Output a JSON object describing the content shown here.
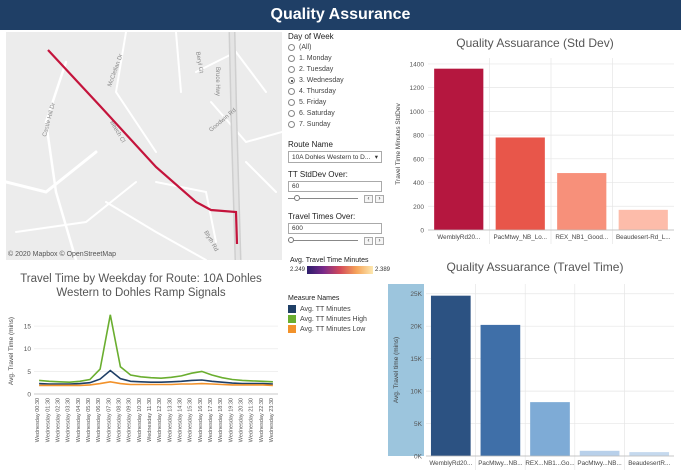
{
  "title": "Quality Assurance",
  "map": {
    "credit": "© 2020 Mapbox  © OpenStreetMap",
    "street_labels": [
      "McClellan Dr",
      "Beryl Gt",
      "Beech Cl",
      "Castle Hill Dr",
      "Goodwin Rd",
      "Blyth Rd",
      "Bruce Hwy",
      "Castle Hill Dr"
    ]
  },
  "filters": {
    "day_label": "Day of Week",
    "days": [
      {
        "label": "(All)",
        "selected": false
      },
      {
        "label": "1. Monday",
        "selected": false
      },
      {
        "label": "2. Tuesday",
        "selected": false
      },
      {
        "label": "3. Wednesday",
        "selected": true
      },
      {
        "label": "4. Thursday",
        "selected": false
      },
      {
        "label": "5. Friday",
        "selected": false
      },
      {
        "label": "6. Saturday",
        "selected": false
      },
      {
        "label": "7. Sunday",
        "selected": false
      }
    ],
    "route_label": "Route Name",
    "route_value": "10A Dohles Western to D...",
    "stddev_label": "TT StdDev Over:",
    "stddev_value": "60",
    "tt_label": "Travel Times Over:",
    "tt_value": "600",
    "color_legend_title": "Avg. Travel Time Minutes",
    "color_min": "2.249",
    "color_max": "2.389",
    "measure_title": "Measure Names",
    "measures": [
      {
        "label": "Avg. TT Minutes",
        "color": "#1f3f66"
      },
      {
        "label": "Avg. TT Minutes High",
        "color": "#6aae2f"
      },
      {
        "label": "Avg. TT Minutes Low",
        "color": "#f2922b"
      }
    ]
  },
  "std_chart": {
    "title": "Quality Assuarance (Std Dev)",
    "ylabel": "Travel Time Minutes StdDev",
    "y_ticks": [
      "0",
      "200",
      "400",
      "600",
      "800",
      "1000",
      "1200",
      "1400"
    ]
  },
  "tt_chart": {
    "title": "Quality Assuarance (Travel Time)",
    "ylabel": "Avg. Travel time (mins)",
    "y_ticks": [
      "0K",
      "5K",
      "10K",
      "15K",
      "20K",
      "25K"
    ]
  },
  "weekday_chart": {
    "title": "Travel Time by Weekday for Route: 10A Dohles Western to Dohles Ramp Signals",
    "ylabel": "Avg. Travel Time (mins)",
    "y_ticks": [
      "0",
      "5",
      "10",
      "15"
    ]
  },
  "chart_data": [
    {
      "type": "bar",
      "title": "Quality Assuarance (Std Dev)",
      "ylabel": "Travel Time Minutes StdDev",
      "ylim": [
        0,
        1450
      ],
      "categories": [
        "WemblyRd20...",
        "PacMtwy_NB_Lo...",
        "REX_NB1_Good...",
        "Beaudesert-Rd_L..."
      ],
      "values": [
        1360,
        780,
        480,
        170
      ],
      "colors": [
        "#b5173f",
        "#e8564a",
        "#f7907a",
        "#fdbcaa"
      ]
    },
    {
      "type": "bar",
      "title": "Quality Assuarance (Travel Time)",
      "ylabel": "Avg. Travel time (mins)",
      "ylim": [
        0,
        26500
      ],
      "categories": [
        "WemblyRd20...",
        "PacMtwy...NB...",
        "REX...NB1...Go...",
        "PacMtwy...NB...",
        "BeaudesertR..."
      ],
      "values": [
        24700,
        20200,
        8300,
        800,
        600
      ],
      "colors": [
        "#2c5282",
        "#3f6fa8",
        "#7eabd6",
        "#b8d0ea",
        "#c5d9ee"
      ]
    },
    {
      "type": "line",
      "title": "Travel Time by Weekday for Route: 10A Dohles Western to Dohles Ramp Signals",
      "ylabel": "Avg. Travel Time (mins)",
      "ylim": [
        0,
        19
      ],
      "x": [
        "Wednesday 00:30",
        "Wednesday 01:30",
        "Wednesday 02:30",
        "Wednesday 03:30",
        "Wednesday 04:30",
        "Wednesday 05:30",
        "Wednesday 06:30",
        "Wednesday 07:30",
        "Wednesday 08:30",
        "Wednesday 09:30",
        "Wednesday 10:30",
        "Wednesday 11:30",
        "Wednesday 12:30",
        "Wednesday 13:30",
        "Wednesday 14:30",
        "Wednesday 15:30",
        "Wednesday 16:30",
        "Wednesday 17:30",
        "Wednesday 18:30",
        "Wednesday 19:30",
        "Wednesday 20:30",
        "Wednesday 21:30",
        "Wednesday 22:30",
        "Wednesday 23:30"
      ],
      "series": [
        {
          "name": "Avg. TT Minutes High",
          "color": "#6aae2f",
          "values": [
            3.0,
            2.8,
            2.7,
            2.6,
            2.8,
            3.2,
            5.5,
            17.5,
            6.0,
            4.2,
            3.8,
            3.6,
            3.5,
            3.7,
            4.0,
            4.6,
            5.0,
            4.2,
            3.6,
            3.2,
            3.0,
            2.9,
            2.8,
            2.7
          ]
        },
        {
          "name": "Avg. TT Minutes",
          "color": "#1f3f66",
          "values": [
            2.3,
            2.2,
            2.2,
            2.2,
            2.3,
            2.5,
            3.3,
            5.2,
            3.4,
            2.8,
            2.7,
            2.6,
            2.6,
            2.7,
            2.8,
            3.0,
            3.1,
            2.8,
            2.6,
            2.4,
            2.3,
            2.3,
            2.3,
            2.2
          ]
        },
        {
          "name": "Avg. TT Minutes Low",
          "color": "#f2922b",
          "values": [
            1.9,
            1.9,
            1.9,
            1.9,
            1.9,
            2.0,
            2.3,
            2.7,
            2.3,
            2.1,
            2.1,
            2.1,
            2.1,
            2.1,
            2.2,
            2.2,
            2.3,
            2.2,
            2.1,
            2.0,
            2.0,
            2.0,
            2.0,
            1.9
          ]
        }
      ]
    }
  ]
}
